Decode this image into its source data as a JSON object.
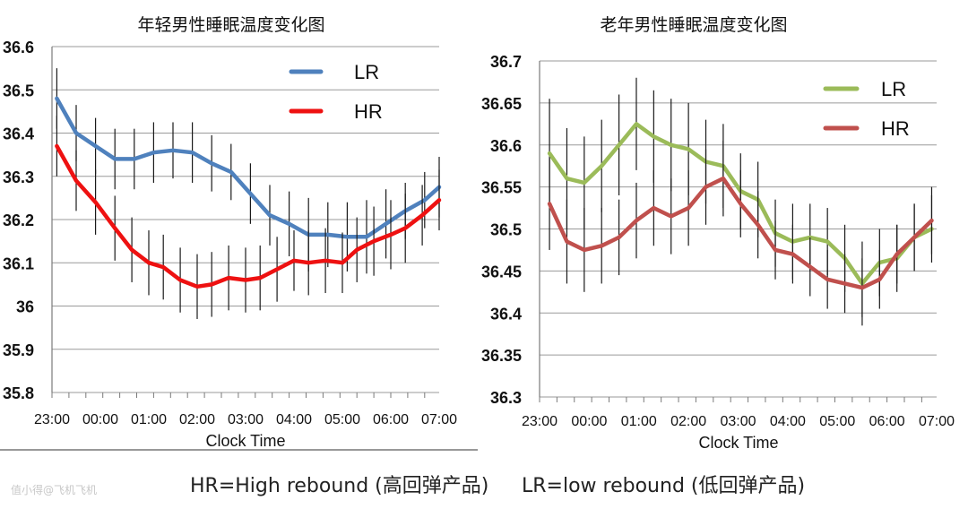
{
  "captions": {
    "hr": "HR=High rebound (高回弹产品)",
    "lr": "LR=low rebound (低回弹产品)"
  },
  "watermark": "值小得@飞机飞机",
  "chart_data": [
    {
      "type": "line",
      "title": "年轻男性睡眠温度变化图",
      "xlabel": "Clock Time",
      "ylabel": "",
      "ylim": [
        35.8,
        36.6
      ],
      "yticks": [
        "35.8",
        "35.9",
        "36",
        "36.1",
        "36.2",
        "36.3",
        "36.4",
        "36.5",
        "36.6"
      ],
      "ytick_values": [
        35.8,
        35.9,
        36.0,
        36.1,
        36.2,
        36.3,
        36.4,
        36.5,
        36.6
      ],
      "xticks": [
        "23:00",
        "00:00",
        "01:00",
        "02:00",
        "03:00",
        "04:00",
        "05:00",
        "06:00",
        "07:00"
      ],
      "xlim": [
        23,
        31
      ],
      "grid": true,
      "legend_position": "top-right",
      "legend": [
        "LR",
        "HR"
      ],
      "x": [
        23.1,
        23.5,
        23.9,
        24.3,
        24.7,
        25.1,
        25.5,
        25.9,
        26.3,
        26.7,
        27.1,
        27.5,
        27.9,
        28.3,
        28.7,
        29.1,
        29.5,
        29.9,
        30.3,
        30.7,
        31.0
      ],
      "series": [
        {
          "name": "LR",
          "color": "#4f81bd",
          "values": [
            36.48,
            36.4,
            36.37,
            36.34,
            36.34,
            36.355,
            36.36,
            36.355,
            36.33,
            36.31,
            36.26,
            36.21,
            36.19,
            36.165,
            36.165,
            36.16,
            36.16,
            36.19,
            36.22,
            36.245,
            36.275
          ],
          "errors": [
            0.07,
            0.065,
            0.065,
            0.07,
            0.07,
            0.07,
            0.065,
            0.07,
            0.065,
            0.065,
            0.07,
            0.07,
            0.075,
            0.085,
            0.075,
            0.08,
            0.085,
            0.08,
            0.065,
            0.065,
            0.07
          ]
        },
        {
          "name": "HR",
          "color": "#ee1111",
          "values": [
            36.37,
            36.29,
            36.24,
            36.18,
            36.13,
            36.1,
            36.09,
            36.06,
            36.045,
            36.05,
            36.065,
            36.06,
            36.065,
            36.085,
            36.105,
            36.1,
            36.105,
            36.1,
            36.13,
            36.15,
            36.165,
            36.18,
            36.21,
            36.245
          ],
          "x": [
            23.1,
            23.5,
            23.9,
            24.3,
            24.65,
            25.0,
            25.3,
            25.65,
            26.0,
            26.3,
            26.65,
            27.0,
            27.3,
            27.65,
            28.0,
            28.3,
            28.65,
            29.0,
            29.3,
            29.65,
            30.0,
            30.3,
            30.65,
            31.0
          ],
          "errors": [
            0.07,
            0.07,
            0.075,
            0.075,
            0.075,
            0.075,
            0.075,
            0.075,
            0.075,
            0.075,
            0.075,
            0.075,
            0.075,
            0.075,
            0.07,
            0.075,
            0.075,
            0.07,
            0.075,
            0.08,
            0.08,
            0.08,
            0.07,
            0.07
          ]
        }
      ]
    },
    {
      "type": "line",
      "title": "老年男性睡眠温度变化图",
      "xlabel": "Clock Time",
      "ylabel": "",
      "ylim": [
        36.3,
        36.7
      ],
      "yticks": [
        "36.3",
        "36.35",
        "36.4",
        "36.45",
        "36.5",
        "36.55",
        "36.6",
        "36.65",
        "36.7"
      ],
      "ytick_values": [
        36.3,
        36.35,
        36.4,
        36.45,
        36.5,
        36.55,
        36.6,
        36.65,
        36.7
      ],
      "xticks": [
        "23:00",
        "00:00",
        "01:00",
        "02:00",
        "03:00",
        "04:00",
        "05:00",
        "06:00",
        "07:00"
      ],
      "xlim": [
        23,
        31
      ],
      "grid": true,
      "legend_position": "top-right",
      "legend": [
        "LR",
        "HR"
      ],
      "series": [
        {
          "name": "LR",
          "color": "#9bbb59",
          "x": [
            23.2,
            23.55,
            23.9,
            24.25,
            24.6,
            24.95,
            25.3,
            25.65,
            26.0,
            26.35,
            26.7,
            27.05,
            27.4,
            27.75,
            28.1,
            28.45,
            28.8,
            29.15,
            29.5,
            29.85,
            30.2,
            30.55,
            30.9
          ],
          "values": [
            36.59,
            36.56,
            36.555,
            36.575,
            36.6,
            36.625,
            36.61,
            36.6,
            36.595,
            36.58,
            36.575,
            36.545,
            36.535,
            36.495,
            36.485,
            36.49,
            36.485,
            36.465,
            36.435,
            36.46,
            36.465,
            36.49,
            36.5
          ],
          "errors": [
            0.065,
            0.06,
            0.055,
            0.055,
            0.06,
            0.055,
            0.055,
            0.055,
            0.055,
            0.05,
            0.05,
            0.045,
            0.045,
            0.04,
            0.045,
            0.04,
            0.04,
            0.04,
            0.05,
            0.04,
            0.04,
            0.04,
            0.04
          ]
        },
        {
          "name": "HR",
          "color": "#c0504d",
          "x": [
            23.2,
            23.55,
            23.9,
            24.25,
            24.6,
            24.95,
            25.3,
            25.65,
            26.0,
            26.35,
            26.7,
            27.05,
            27.4,
            27.75,
            28.1,
            28.45,
            28.8,
            29.15,
            29.5,
            29.85,
            30.2,
            30.55,
            30.9
          ],
          "values": [
            36.53,
            36.485,
            36.475,
            36.48,
            36.49,
            36.51,
            36.525,
            36.515,
            36.525,
            36.55,
            36.56,
            36.53,
            36.505,
            36.475,
            36.47,
            36.455,
            36.44,
            36.435,
            36.43,
            36.44,
            36.47,
            36.49,
            36.51
          ],
          "errors": [
            0.055,
            0.05,
            0.05,
            0.045,
            0.045,
            0.045,
            0.045,
            0.045,
            0.045,
            0.045,
            0.045,
            0.04,
            0.04,
            0.035,
            0.035,
            0.035,
            0.035,
            0.035,
            0.035,
            0.035,
            0.035,
            0.04,
            0.04
          ]
        }
      ]
    }
  ]
}
